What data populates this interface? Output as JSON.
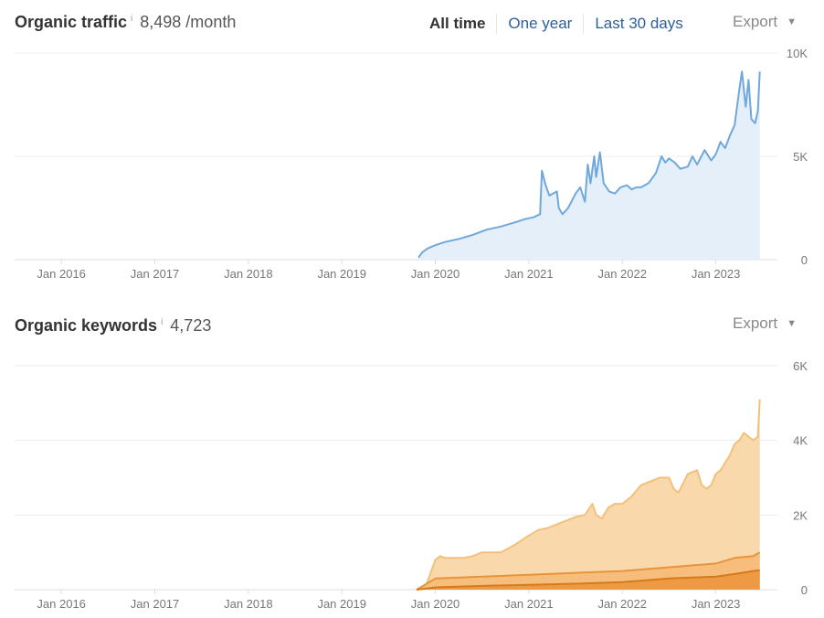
{
  "traffic_header": {
    "title": "Organic traffic",
    "info": "i",
    "value": "8,498 /month"
  },
  "keywords_header": {
    "title": "Organic keywords",
    "info": "i",
    "value": "4,723"
  },
  "range_tabs": [
    {
      "label": "All time",
      "active": true
    },
    {
      "label": "One year",
      "active": false
    },
    {
      "label": "Last 30 days",
      "active": false
    }
  ],
  "export_label": "Export",
  "chart_data": [
    {
      "type": "area",
      "title": "Organic traffic",
      "xlabel": "",
      "ylabel": "",
      "x_ticks": [
        "Jan 2016",
        "Jan 2017",
        "Jan 2018",
        "Jan 2019",
        "Jan 2020",
        "Jan 2021",
        "Jan 2022",
        "Jan 2023"
      ],
      "y_ticks": [
        "0",
        "5K",
        "10K"
      ],
      "ylim": [
        0,
        10000
      ],
      "xlim": [
        2015.5,
        2023.6
      ],
      "grid": true,
      "colors": {
        "line": "#6fa8dc",
        "fill": "#e4eff9"
      },
      "series": [
        {
          "x": [
            2019.82,
            2019.86,
            2019.92,
            2020.0,
            2020.1,
            2020.25,
            2020.4,
            2020.55,
            2020.7,
            2020.85,
            2020.95,
            2021.05,
            2021.12,
            2021.14,
            2021.18,
            2021.22,
            2021.3,
            2021.32,
            2021.36,
            2021.42,
            2021.5,
            2021.55,
            2021.6,
            2021.63,
            2021.66,
            2021.7,
            2021.72,
            2021.76,
            2021.8,
            2021.86,
            2021.92,
            2021.98,
            2022.05,
            2022.1,
            2022.15,
            2022.2,
            2022.28,
            2022.36,
            2022.42,
            2022.46,
            2022.5,
            2022.56,
            2022.62,
            2022.7,
            2022.75,
            2022.8,
            2022.88,
            2022.95,
            2023.0,
            2023.05,
            2023.1,
            2023.15,
            2023.2,
            2023.25,
            2023.28,
            2023.32,
            2023.35,
            2023.38,
            2023.42,
            2023.45,
            2023.47
          ],
          "values": [
            100,
            350,
            550,
            700,
            850,
            1000,
            1200,
            1450,
            1600,
            1800,
            1950,
            2050,
            2200,
            4300,
            3600,
            3100,
            3300,
            2500,
            2200,
            2500,
            3200,
            3500,
            2800,
            4600,
            3700,
            5000,
            4000,
            5200,
            3700,
            3300,
            3200,
            3500,
            3600,
            3400,
            3500,
            3500,
            3700,
            4200,
            5000,
            4700,
            4900,
            4700,
            4400,
            4500,
            5000,
            4600,
            5300,
            4800,
            5100,
            5700,
            5400,
            6000,
            6500,
            8200,
            9100,
            7400,
            8700,
            6800,
            6600,
            7200,
            9100
          ]
        }
      ]
    },
    {
      "type": "area",
      "title": "Organic keywords",
      "xlabel": "",
      "ylabel": "",
      "x_ticks": [
        "Jan 2016",
        "Jan 2017",
        "Jan 2018",
        "Jan 2019",
        "Jan 2020",
        "Jan 2021",
        "Jan 2022",
        "Jan 2023"
      ],
      "y_ticks": [
        "0",
        "2K",
        "4K",
        "6K"
      ],
      "ylim": [
        0,
        6000
      ],
      "xlim": [
        2015.5,
        2023.6
      ],
      "grid": true,
      "series": [
        {
          "color": "#f9d9ac",
          "stroke": "#f3c07a",
          "x": [
            2019.8,
            2019.9,
            2020.0,
            2020.05,
            2020.1,
            2020.2,
            2020.3,
            2020.4,
            2020.5,
            2020.6,
            2020.7,
            2020.85,
            2021.0,
            2021.1,
            2021.2,
            2021.35,
            2021.5,
            2021.6,
            2021.68,
            2021.72,
            2021.78,
            2021.85,
            2021.92,
            2022.0,
            2022.1,
            2022.2,
            2022.3,
            2022.4,
            2022.45,
            2022.5,
            2022.55,
            2022.6,
            2022.7,
            2022.8,
            2022.85,
            2022.9,
            2022.95,
            2023.0,
            2023.05,
            2023.1,
            2023.15,
            2023.2,
            2023.25,
            2023.3,
            2023.35,
            2023.4,
            2023.45,
            2023.47
          ],
          "values": [
            0,
            100,
            800,
            900,
            850,
            850,
            850,
            900,
            1000,
            1000,
            1000,
            1200,
            1450,
            1600,
            1650,
            1800,
            1950,
            2000,
            2300,
            2000,
            1900,
            2200,
            2300,
            2300,
            2500,
            2800,
            2900,
            3000,
            3000,
            3000,
            2700,
            2600,
            3100,
            3200,
            2800,
            2700,
            2800,
            3100,
            3200,
            3400,
            3600,
            3900,
            4000,
            4200,
            4100,
            4000,
            4100,
            5100
          ]
        },
        {
          "color": "#f6bd7c",
          "stroke": "#e8943a",
          "x": [
            2019.8,
            2020.0,
            2020.5,
            2021.0,
            2021.5,
            2022.0,
            2022.5,
            2023.0,
            2023.2,
            2023.4,
            2023.47
          ],
          "values": [
            0,
            300,
            350,
            400,
            450,
            500,
            600,
            700,
            850,
            900,
            1000
          ]
        },
        {
          "color": "#ee9a45",
          "stroke": "#d67a1c",
          "x": [
            2019.8,
            2020.0,
            2020.5,
            2021.0,
            2021.5,
            2022.0,
            2022.5,
            2023.0,
            2023.2,
            2023.4,
            2023.47
          ],
          "values": [
            0,
            60,
            100,
            130,
            160,
            200,
            300,
            350,
            420,
            500,
            520
          ]
        }
      ]
    }
  ]
}
